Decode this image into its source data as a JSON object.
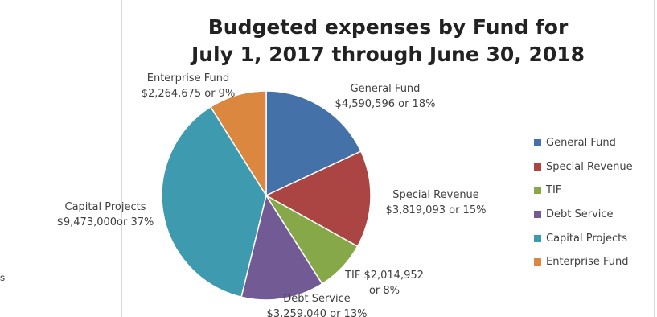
{
  "chart_data": {
    "type": "pie",
    "title": "Budgeted expenses by Fund for",
    "title_line2": "July 1, 2017 through June 30, 2018",
    "start_angle_deg": 0,
    "direction": "clockwise",
    "legend_position": "right",
    "slices": [
      {
        "name": "General Fund",
        "value": 4590596,
        "percent": 18,
        "color": "#4472a8",
        "label_line1": "General Fund",
        "label_line2": "$4,590,596 or 18%"
      },
      {
        "name": "Special Revenue",
        "value": 3819093,
        "percent": 15,
        "color": "#ab4543",
        "label_line1": "Special Revenue",
        "label_line2": "$3,819,093 or 15%"
      },
      {
        "name": "TIF",
        "value": 2014952,
        "percent": 8,
        "color": "#87a848",
        "label_line1": "TIF $2,014,952",
        "label_line2": "or 8%"
      },
      {
        "name": "Debt Service",
        "value": 3259040,
        "percent": 13,
        "color": "#725a95",
        "label_line1": "Debt Service",
        "label_line2": "$3,259,040 or 13%"
      },
      {
        "name": "Capital Projects",
        "value": 9473000,
        "percent": 37,
        "color": "#3e9aae",
        "label_line1": "Capital Projects",
        "label_line2": "$9,473,000or 37%"
      },
      {
        "name": "Enterprise Fund",
        "value": 2264675,
        "percent": 9,
        "color": "#db8740",
        "label_line1": "Enterprise Fund",
        "label_line2": "$2,264,675 or 9%"
      }
    ]
  },
  "edge_glyph": "s"
}
